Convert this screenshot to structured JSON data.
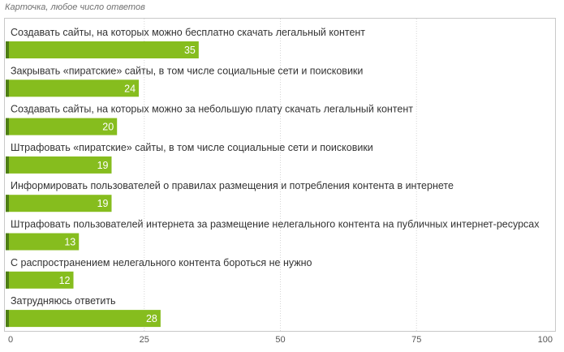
{
  "subtitle": "Карточка, любое число ответов",
  "colors": {
    "bar": "#86bd1e",
    "bar_accent": "#4f7f14",
    "grid": "#d6d6d6",
    "frame": "#c9c9c9"
  },
  "chart_data": {
    "type": "bar",
    "orientation": "horizontal",
    "title": "",
    "subtitle": "Карточка, любое число ответов",
    "xlabel": "",
    "ylabel": "",
    "xlim": [
      0,
      100
    ],
    "ticks": [
      "0",
      "25",
      "50",
      "75",
      "100"
    ],
    "tick_values": [
      0,
      25,
      50,
      75,
      100
    ],
    "grid": true,
    "categories": [
      "Создавать сайты, на которых можно бесплатно скачать легальный контент",
      "Закрывать «пиратские» сайты, в том числе социальные сети и поисковики",
      "Создавать сайты, на которых можно за небольшую плату скачать легальный контент",
      "Штрафовать «пиратские» сайты, в том числе социальные сети и поисковики",
      "Информировать пользователей о правилах размещения и потребления контента в интернете",
      "Штрафовать пользователей интернета за размещение нелегального контента на публичных интернет-ресурсах",
      "С распространением нелегального контента бороться не нужно",
      "Затрудняюсь ответить"
    ],
    "values": [
      35,
      24,
      20,
      19,
      19,
      13,
      12,
      28
    ],
    "data_labels": [
      "35",
      "24",
      "20",
      "19",
      "19",
      "13",
      "12",
      "28"
    ]
  }
}
